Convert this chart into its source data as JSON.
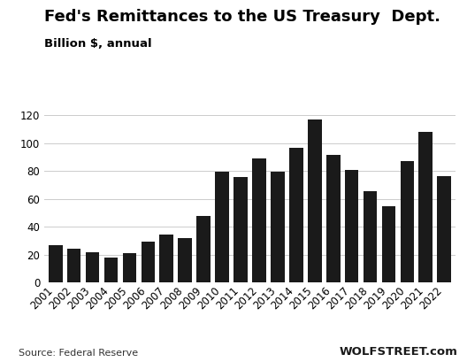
{
  "title": "Fed's Remittances to the US Treasury  Dept.",
  "subtitle": "Billion $, annual",
  "source": "Source: Federal Reserve",
  "watermark": "WOLFSTREET.com",
  "years": [
    "2001",
    "2002",
    "2003",
    "2004",
    "2005",
    "2006",
    "2007",
    "2008",
    "2009",
    "2010",
    "2011",
    "2012",
    "2013",
    "2014",
    "2015",
    "2016",
    "2017",
    "2018",
    "2019",
    "2020",
    "2021",
    "2022"
  ],
  "values": [
    26.5,
    24.0,
    21.7,
    18.1,
    21.0,
    29.1,
    34.6,
    31.7,
    47.4,
    79.3,
    75.4,
    88.9,
    79.6,
    96.9,
    117.1,
    91.5,
    80.6,
    65.3,
    54.9,
    86.9,
    107.8,
    76.0
  ],
  "bar_color": "#1a1a1a",
  "background_color": "#ffffff",
  "ylim": [
    0,
    130
  ],
  "yticks": [
    0,
    20,
    40,
    60,
    80,
    100,
    120
  ],
  "title_fontsize": 13,
  "subtitle_fontsize": 9.5,
  "axis_fontsize": 8.5,
  "source_fontsize": 8,
  "watermark_fontsize": 9.5
}
